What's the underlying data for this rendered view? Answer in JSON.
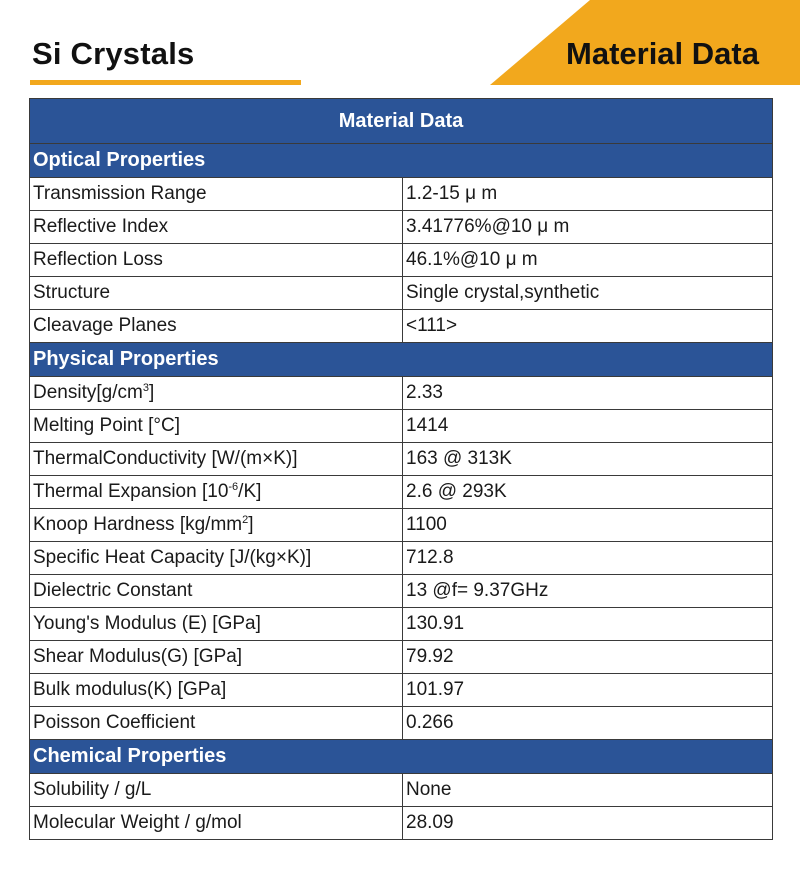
{
  "page_title": "Si Crystals",
  "banner_label": "Material Data",
  "colors": {
    "accent_orange": "#f2a81d",
    "header_blue": "#2b5497"
  },
  "table": {
    "header": "Material Data",
    "sections": [
      {
        "title": "Optical Properties",
        "rows": [
          {
            "property": "Transmission Range",
            "value": "1.2-15 μ m"
          },
          {
            "property": "Reflective Index",
            "value": "3.41776%@10 μ m"
          },
          {
            "property": "Reflection Loss",
            "value": "46.1%@10 μ m"
          },
          {
            "property": "Structure",
            "value": "Single crystal,synthetic"
          },
          {
            "property": "Cleavage Planes",
            "value": "<111>"
          }
        ]
      },
      {
        "title": "Physical Properties",
        "rows": [
          {
            "property_pre": "Density[g/cm",
            "property_sup": "3",
            "property_post": "]",
            "value": "2.33"
          },
          {
            "property": "Melting Point [°C]",
            "value": "1414"
          },
          {
            "property": "ThermalConductivity [W/(m×K)]",
            "value": "163 @ 313K"
          },
          {
            "property_pre": "Thermal Expansion [10",
            "property_sup": "-6",
            "property_post": "/K]",
            "value": "2.6 @ 293K"
          },
          {
            "property_pre": "Knoop Hardness [kg/mm",
            "property_sup": "2",
            "property_post": "]",
            "value": "1100"
          },
          {
            "property": "Specific Heat Capacity [J/(kg×K)]",
            "value": "712.8"
          },
          {
            "property": "Dielectric Constant",
            "value": "13 @f= 9.37GHz"
          },
          {
            "property": "Young's Modulus (E) [GPa]",
            "value": "130.91"
          },
          {
            "property": "Shear Modulus(G) [GPa]",
            "value": "79.92"
          },
          {
            "property": "Bulk modulus(K) [GPa]",
            "value": "101.97"
          },
          {
            "property": "Poisson Coefficient",
            "value": "0.266"
          }
        ]
      },
      {
        "title": "Chemical Properties",
        "rows": [
          {
            "property": "Solubility / g/L",
            "value": "None"
          },
          {
            "property": "Molecular Weight / g/mol",
            "value": "28.09"
          }
        ]
      }
    ]
  }
}
